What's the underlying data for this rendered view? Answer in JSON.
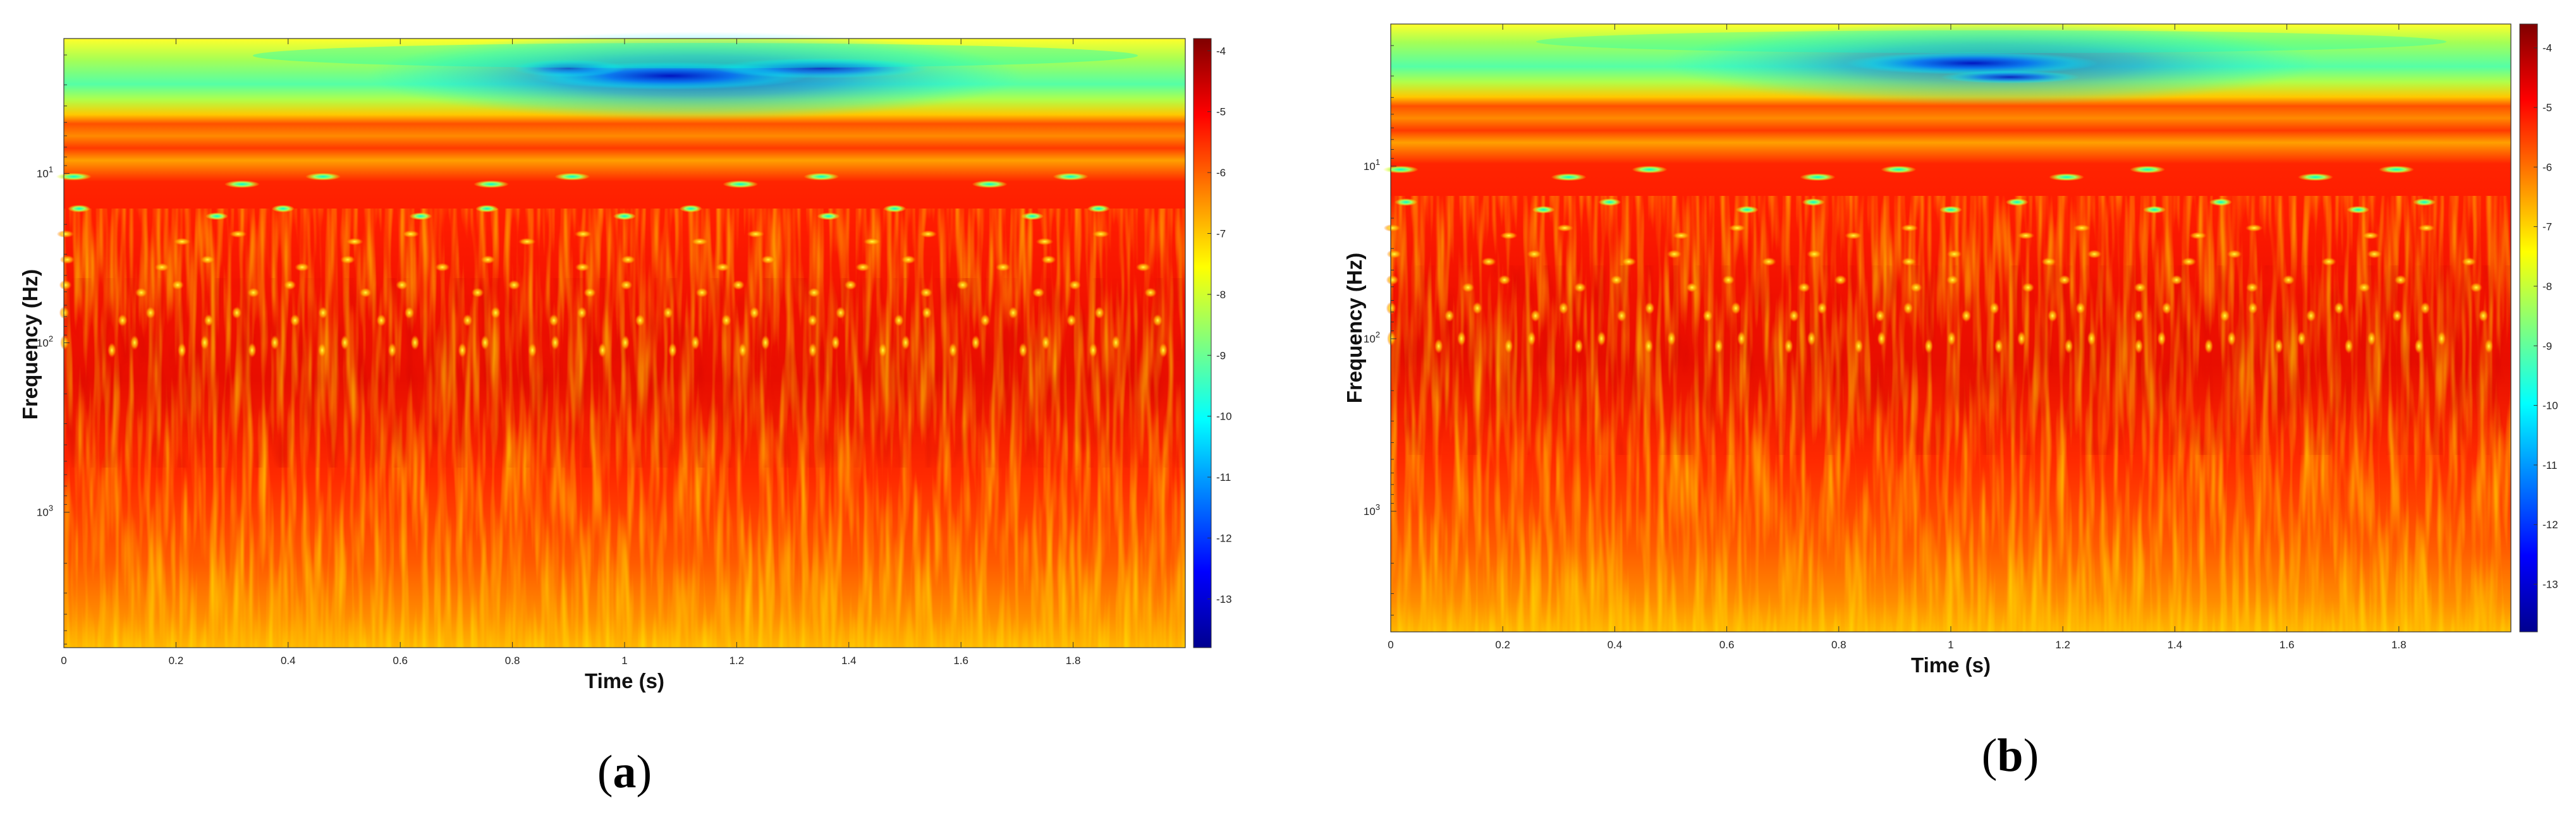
{
  "chart_data": [
    {
      "type": "heatmap",
      "panel_label": {
        "open": "(",
        "letter": "a",
        "close": ")"
      },
      "xlabel": "Time (s)",
      "ylabel": "Frequency (Hz)",
      "xlim": [
        0,
        2
      ],
      "x_ticks": [
        "0",
        "0.2",
        "0.4",
        "0.6",
        "0.8",
        "1",
        "1.2",
        "1.4",
        "1.6",
        "1.8"
      ],
      "y_scale": "log",
      "y_reversed": true,
      "ylim": [
        1.6,
        6300
      ],
      "y_ticks": [
        {
          "value": 10,
          "base": "10",
          "exp": "1"
        },
        {
          "value": 100,
          "base": "10",
          "exp": "2"
        },
        {
          "value": 1000,
          "base": "10",
          "exp": "3"
        }
      ],
      "colorbar": {
        "colormap": "jet",
        "range": [
          -13.8,
          -3.8
        ],
        "ticks": [
          "-4",
          "-5",
          "-6",
          "-7",
          "-8",
          "-9",
          "-10",
          "-11",
          "-12",
          "-13"
        ]
      },
      "colors": {
        "low": "#00008f",
        "mid": "#7fff7f",
        "high": "#800000"
      }
    },
    {
      "type": "heatmap",
      "panel_label": {
        "open": "(",
        "letter": "b",
        "close": ")"
      },
      "xlabel": "Time (s)",
      "ylabel": "Frequency (Hz)",
      "xlim": [
        0,
        2
      ],
      "x_ticks": [
        "0",
        "0.2",
        "0.4",
        "0.6",
        "0.8",
        "1",
        "1.2",
        "1.4",
        "1.6",
        "1.8"
      ],
      "y_scale": "log",
      "y_reversed": true,
      "ylim": [
        1.5,
        5000
      ],
      "y_ticks": [
        {
          "value": 10,
          "base": "10",
          "exp": "1"
        },
        {
          "value": 100,
          "base": "10",
          "exp": "2"
        },
        {
          "value": 1000,
          "base": "10",
          "exp": "3"
        }
      ],
      "colorbar": {
        "colormap": "jet",
        "range": [
          -13.8,
          -3.6
        ],
        "ticks": [
          "-4",
          "-5",
          "-6",
          "-7",
          "-8",
          "-9",
          "-10",
          "-11",
          "-12",
          "-13"
        ]
      },
      "colors": {
        "low": "#00008f",
        "mid": "#7fff7f",
        "high": "#800000"
      }
    }
  ]
}
